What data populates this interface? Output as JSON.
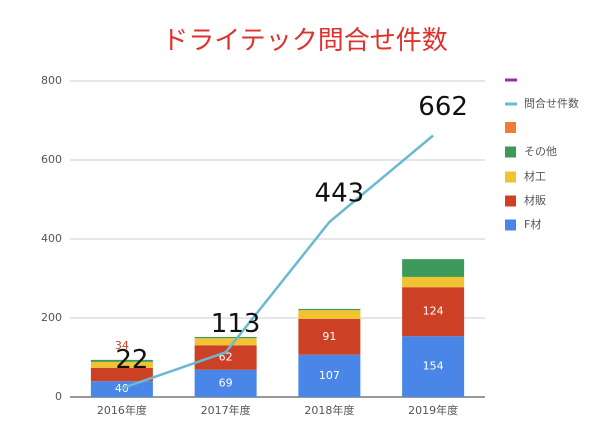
{
  "chart_data": {
    "type": "bar",
    "stacked": true,
    "title": "ドライテック問合せ件数",
    "categories": [
      "2016年度",
      "2017年度",
      "2018年度",
      "2019年度"
    ],
    "series": [
      {
        "name": "F材",
        "color": "#4a86e8",
        "values": [
          40,
          69,
          107,
          154
        ],
        "show_labels": true
      },
      {
        "name": "材販",
        "color": "#cc4125",
        "values": [
          34,
          62,
          91,
          124
        ],
        "show_labels": true
      },
      {
        "name": "材工",
        "color": "#f1c232",
        "values": [
          15,
          18,
          22,
          26
        ]
      },
      {
        "name": "その他",
        "color": "#3d9a5a",
        "values": [
          5,
          3,
          3,
          45
        ]
      },
      {
        "name": "問合せ件数",
        "color": "#6bb8d3",
        "type": "line",
        "values": [
          22,
          113,
          443,
          662
        ],
        "show_labels": true
      }
    ],
    "ylim": [
      0,
      800
    ],
    "yticks": [
      0,
      200,
      400,
      600,
      800
    ],
    "grid": true,
    "legend": "right"
  }
}
